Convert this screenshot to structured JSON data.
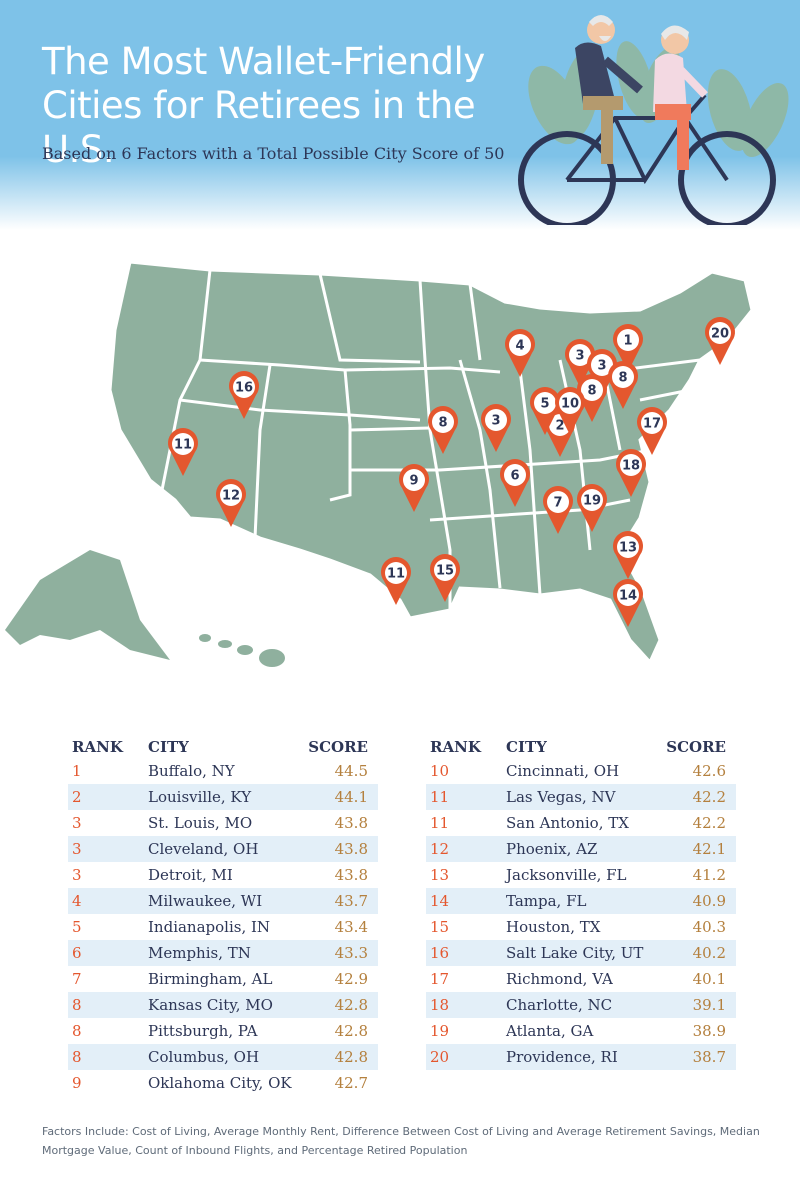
{
  "header": {
    "title_line1": "The Most Wallet-Friendly",
    "title_line2": "Cities for Retirees in the U.S.",
    "subtitle": "Based on 6 Factors with a Total Possible City Score of 50"
  },
  "colors": {
    "sky": "#7ec2e8",
    "map_fill": "#8fb09e",
    "pin": "#e4572e",
    "navy": "#2d3656",
    "rank": "#e4572e",
    "score": "#b4803e",
    "row_alt": "#e3eff8"
  },
  "map": {
    "pins": [
      {
        "label": "1",
        "city": "Buffalo, NY"
      },
      {
        "label": "2",
        "city": "Louisville, KY"
      },
      {
        "label": "3",
        "city": "St. Louis, MO"
      },
      {
        "label": "3",
        "city": "Cleveland, OH"
      },
      {
        "label": "3",
        "city": "Detroit, MI"
      },
      {
        "label": "4",
        "city": "Milwaukee, WI"
      },
      {
        "label": "5",
        "city": "Indianapolis, IN"
      },
      {
        "label": "6",
        "city": "Memphis, TN"
      },
      {
        "label": "7",
        "city": "Birmingham, AL"
      },
      {
        "label": "8",
        "city": "Kansas City, MO"
      },
      {
        "label": "8",
        "city": "Pittsburgh, PA"
      },
      {
        "label": "8",
        "city": "Columbus, OH"
      },
      {
        "label": "9",
        "city": "Oklahoma City, OK"
      },
      {
        "label": "10",
        "city": "Cincinnati, OH"
      },
      {
        "label": "11",
        "city": "Las Vegas, NV"
      },
      {
        "label": "11",
        "city": "San Antonio, TX"
      },
      {
        "label": "12",
        "city": "Phoenix, AZ"
      },
      {
        "label": "13",
        "city": "Jacksonville, FL"
      },
      {
        "label": "14",
        "city": "Tampa, FL"
      },
      {
        "label": "15",
        "city": "Houston, TX"
      },
      {
        "label": "16",
        "city": "Salt Lake City, UT"
      },
      {
        "label": "17",
        "city": "Richmond, VA"
      },
      {
        "label": "18",
        "city": "Charlotte, NC"
      },
      {
        "label": "19",
        "city": "Atlanta, GA"
      },
      {
        "label": "20",
        "city": "Providence, RI"
      }
    ]
  },
  "table": {
    "headers": {
      "rank": "RANK",
      "city": "CITY",
      "score": "SCORE"
    },
    "left": [
      {
        "rank": "1",
        "city": "Buffalo, NY",
        "score": "44.5"
      },
      {
        "rank": "2",
        "city": "Louisville, KY",
        "score": "44.1"
      },
      {
        "rank": "3",
        "city": "St. Louis, MO",
        "score": "43.8"
      },
      {
        "rank": "3",
        "city": "Cleveland, OH",
        "score": "43.8"
      },
      {
        "rank": "3",
        "city": "Detroit, MI",
        "score": "43.8"
      },
      {
        "rank": "4",
        "city": "Milwaukee, WI",
        "score": "43.7"
      },
      {
        "rank": "5",
        "city": "Indianapolis, IN",
        "score": "43.4"
      },
      {
        "rank": "6",
        "city": "Memphis, TN",
        "score": "43.3"
      },
      {
        "rank": "7",
        "city": "Birmingham, AL",
        "score": "42.9"
      },
      {
        "rank": "8",
        "city": "Kansas City, MO",
        "score": "42.8"
      },
      {
        "rank": "8",
        "city": "Pittsburgh, PA",
        "score": "42.8"
      },
      {
        "rank": "8",
        "city": "Columbus, OH",
        "score": "42.8"
      },
      {
        "rank": "9",
        "city": "Oklahoma City, OK",
        "score": "42.7"
      }
    ],
    "right": [
      {
        "rank": "10",
        "city": "Cincinnati, OH",
        "score": "42.6"
      },
      {
        "rank": "11",
        "city": "Las Vegas, NV",
        "score": "42.2"
      },
      {
        "rank": "11",
        "city": "San Antonio, TX",
        "score": "42.2"
      },
      {
        "rank": "12",
        "city": "Phoenix, AZ",
        "score": "42.1"
      },
      {
        "rank": "13",
        "city": "Jacksonville, FL",
        "score": "41.2"
      },
      {
        "rank": "14",
        "city": "Tampa, FL",
        "score": "40.9"
      },
      {
        "rank": "15",
        "city": "Houston, TX",
        "score": "40.3"
      },
      {
        "rank": "16",
        "city": "Salt Lake City, UT",
        "score": "40.2"
      },
      {
        "rank": "17",
        "city": "Richmond, VA",
        "score": "40.1"
      },
      {
        "rank": "18",
        "city": "Charlotte, NC",
        "score": "39.1"
      },
      {
        "rank": "19",
        "city": "Atlanta, GA",
        "score": "38.9"
      },
      {
        "rank": "20",
        "city": "Providence, RI",
        "score": "38.7"
      }
    ]
  },
  "footnote": "Factors Include: Cost of Living, Average Monthly Rent, Difference Between Cost of Living and Average Retirement Savings, Median Mortgage Value, Count of Inbound Flights, and Percentage Retired Population"
}
